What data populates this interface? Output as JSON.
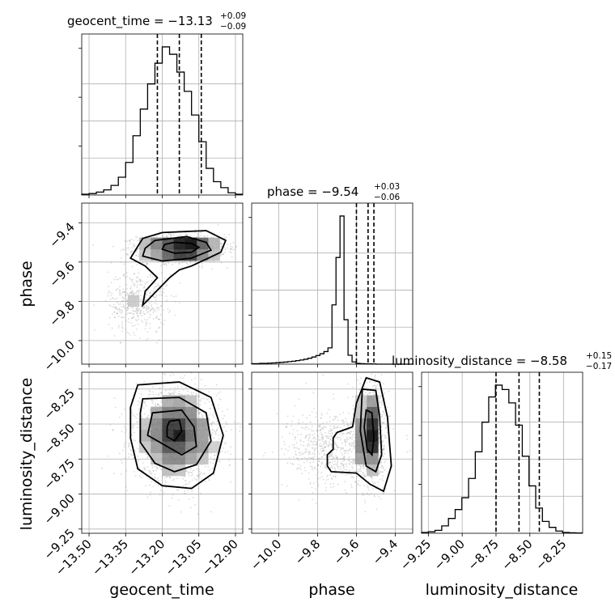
{
  "chart_data": {
    "type": "corner",
    "parameters": [
      "geocent_time",
      "phase",
      "luminosity_distance"
    ],
    "panels": {
      "geocent_time": {
        "title": {
          "prefix": "geocent_time = −13.13",
          "upper": "+0.09",
          "lower": "−0.09"
        },
        "xlim": [
          -13.53,
          -12.87
        ],
        "quantiles": [
          -13.22,
          -13.13,
          -13.04
        ],
        "ticks": [
          -13.5,
          -13.35,
          -13.2,
          -13.05,
          -12.9
        ],
        "tick_labels": [
          "−13.50",
          "−13.35",
          "−13.20",
          "−13.05",
          "−12.90"
        ],
        "hist_edges_start": -13.53,
        "hist_bin_width": 0.03,
        "hist_counts": [
          0.5,
          1,
          2,
          3.5,
          6.5,
          12,
          22,
          40,
          58,
          75,
          89,
          100,
          95,
          83,
          70,
          54,
          36,
          18,
          9,
          5,
          1.5,
          0.5
        ]
      },
      "phase": {
        "title": {
          "prefix": "phase = −9.54",
          "upper": "+0.03",
          "lower": "−0.06"
        },
        "xlim": [
          -10.14,
          -9.31
        ],
        "quantiles": [
          -9.6,
          -9.54,
          -9.51
        ],
        "ticks": [
          -10.0,
          -9.8,
          -9.6,
          -9.4
        ],
        "tick_labels": [
          "−10.0",
          "−9.8",
          "−9.6",
          "−9.4"
        ],
        "hist_edges_start": -10.14,
        "hist_bin_width": 0.0207,
        "hist_counts": [
          0.3,
          0.3,
          0.5,
          0.5,
          0.7,
          0.8,
          1,
          1.2,
          1.4,
          1.7,
          2,
          2.4,
          2.8,
          3.3,
          4,
          4.8,
          5.8,
          7,
          8.5,
          11,
          40,
          72,
          100,
          30,
          6,
          1.5,
          0.5,
          0.3,
          0.2,
          0.2,
          0.1,
          0,
          0,
          0,
          0,
          0,
          0,
          0,
          0,
          0
        ]
      },
      "luminosity_distance": {
        "title": {
          "prefix": "luminosity_distance = −8.58",
          "upper": "+0.15",
          "lower": "−0.17"
        },
        "xlim": [
          -9.3,
          -8.11
        ],
        "quantiles": [
          -8.75,
          -8.58,
          -8.43
        ],
        "ticks": [
          -9.25,
          -9.0,
          -8.75,
          -8.5,
          -8.25
        ],
        "tick_labels": [
          "−9.25",
          "−9.00",
          "−8.75",
          "−8.50",
          "−8.25"
        ],
        "hist_edges_start": -9.3,
        "hist_bin_width": 0.0496,
        "hist_counts": [
          0.5,
          1,
          2,
          5,
          10,
          16,
          24,
          37,
          55,
          75,
          92,
          100,
          97,
          88,
          73,
          52,
          32,
          17,
          8,
          4,
          1.5,
          0.5,
          0.3,
          0.2
        ]
      }
    },
    "phase_axis": {
      "ylim": [
        -10.12,
        -9.3
      ],
      "ticks": [
        -9.4,
        -9.6,
        -9.8,
        -10.0
      ],
      "tick_labels": [
        "−9.4",
        "−9.6",
        "−9.8",
        "−10.0"
      ]
    },
    "luminosity_axis": {
      "ylim": [
        -9.28,
        -8.13
      ],
      "ticks": [
        -8.25,
        -8.5,
        -8.75,
        -9.0,
        -9.25
      ],
      "tick_labels": [
        "−8.25",
        "−8.50",
        "−8.75",
        "−9.00",
        "−9.25"
      ]
    },
    "axis_labels": {
      "x": [
        "geocent_time",
        "phase",
        "luminosity_distance"
      ],
      "y": [
        "phase",
        "luminosity_distance"
      ]
    },
    "scatter_summary": {
      "geocent_time_vs_phase": {
        "clusters": [
          {
            "mean": [
              -13.12,
              -9.53
            ],
            "sd": [
              0.09,
              0.035
            ],
            "n": 1500
          },
          {
            "mean": [
              -13.3,
              -9.8
            ],
            "sd": [
              0.06,
              0.08
            ],
            "n": 450
          }
        ]
      },
      "geocent_time_vs_luminosity_distance": {
        "clusters": [
          {
            "mean": [
              -13.14,
              -8.58
            ],
            "sd": [
              0.085,
              0.16
            ],
            "n": 2200
          }
        ]
      },
      "phase_vs_luminosity_distance": {
        "clusters": [
          {
            "mean": [
              -9.53,
              -8.56
            ],
            "sd": [
              0.035,
              0.16
            ],
            "n": 1500
          },
          {
            "mean": [
              -9.72,
              -8.68
            ],
            "sd": [
              0.12,
              0.14
            ],
            "n": 700
          }
        ]
      }
    },
    "contours": {
      "geocent_time_vs_phase": [
        [
          [
            -13.15,
            -9.5
          ],
          [
            -13.08,
            -9.505
          ],
          [
            -13.05,
            -9.525
          ],
          [
            -13.08,
            -9.55
          ],
          [
            -13.15,
            -9.555
          ],
          [
            -13.2,
            -9.535
          ],
          [
            -13.19,
            -9.51
          ]
        ],
        [
          [
            -13.23,
            -9.49
          ],
          [
            -13.1,
            -9.47
          ],
          [
            -13.02,
            -9.5
          ],
          [
            -13.0,
            -9.54
          ],
          [
            -13.08,
            -9.58
          ],
          [
            -13.2,
            -9.595
          ],
          [
            -13.28,
            -9.57
          ],
          [
            -13.27,
            -9.53
          ]
        ],
        [
          [
            -13.2,
            -9.45
          ],
          [
            -13.02,
            -9.44
          ],
          [
            -12.94,
            -9.49
          ],
          [
            -12.96,
            -9.55
          ],
          [
            -13.08,
            -9.62
          ],
          [
            -13.13,
            -9.64
          ],
          [
            -13.17,
            -9.68
          ],
          [
            -13.28,
            -9.82
          ],
          [
            -13.27,
            -9.75
          ],
          [
            -13.22,
            -9.68
          ],
          [
            -13.27,
            -9.62
          ],
          [
            -13.33,
            -9.58
          ],
          [
            -13.3,
            -9.52
          ],
          [
            -13.28,
            -9.48
          ]
        ]
      ],
      "geocent_time_vs_luminosity_distance": [
        [
          [
            -13.17,
            -8.48
          ],
          [
            -13.13,
            -8.47
          ],
          [
            -13.12,
            -8.55
          ],
          [
            -13.15,
            -8.62
          ],
          [
            -13.18,
            -8.59
          ],
          [
            -13.18,
            -8.52
          ]
        ],
        [
          [
            -13.24,
            -8.42
          ],
          [
            -13.12,
            -8.4
          ],
          [
            -13.07,
            -8.52
          ],
          [
            -13.06,
            -8.66
          ],
          [
            -13.12,
            -8.72
          ],
          [
            -13.18,
            -8.66
          ],
          [
            -13.26,
            -8.58
          ]
        ],
        [
          [
            -13.28,
            -8.32
          ],
          [
            -13.13,
            -8.31
          ],
          [
            -13.02,
            -8.42
          ],
          [
            -13.0,
            -8.62
          ],
          [
            -13.06,
            -8.79
          ],
          [
            -13.15,
            -8.84
          ],
          [
            -13.23,
            -8.78
          ],
          [
            -13.29,
            -8.63
          ],
          [
            -13.29,
            -8.42
          ]
        ],
        [
          [
            -13.3,
            -8.22
          ],
          [
            -13.13,
            -8.2
          ],
          [
            -13.0,
            -8.31
          ],
          [
            -12.95,
            -8.58
          ],
          [
            -12.99,
            -8.85
          ],
          [
            -13.08,
            -8.96
          ],
          [
            -13.2,
            -8.94
          ],
          [
            -13.3,
            -8.82
          ],
          [
            -13.33,
            -8.6
          ],
          [
            -13.33,
            -8.38
          ]
        ]
      ],
      "phase_vs_luminosity_distance": [
        [
          [
            -9.55,
            -8.4
          ],
          [
            -9.52,
            -8.42
          ],
          [
            -9.51,
            -8.6
          ],
          [
            -9.52,
            -8.72
          ],
          [
            -9.545,
            -8.68
          ],
          [
            -9.56,
            -8.52
          ]
        ],
        [
          [
            -9.57,
            -8.25
          ],
          [
            -9.5,
            -8.26
          ],
          [
            -9.48,
            -8.45
          ],
          [
            -9.47,
            -8.72
          ],
          [
            -9.5,
            -8.84
          ],
          [
            -9.55,
            -8.8
          ],
          [
            -9.58,
            -8.55
          ]
        ],
        [
          [
            -9.55,
            -8.17
          ],
          [
            -9.48,
            -8.2
          ],
          [
            -9.44,
            -8.45
          ],
          [
            -9.42,
            -8.8
          ],
          [
            -9.46,
            -8.98
          ],
          [
            -9.53,
            -8.93
          ],
          [
            -9.6,
            -8.85
          ],
          [
            -9.73,
            -8.84
          ],
          [
            -9.75,
            -8.8
          ],
          [
            -9.75,
            -8.72
          ],
          [
            -9.72,
            -8.68
          ],
          [
            -9.72,
            -8.6
          ],
          [
            -9.7,
            -8.56
          ],
          [
            -9.62,
            -8.52
          ],
          [
            -9.6,
            -8.35
          ]
        ]
      ]
    }
  }
}
